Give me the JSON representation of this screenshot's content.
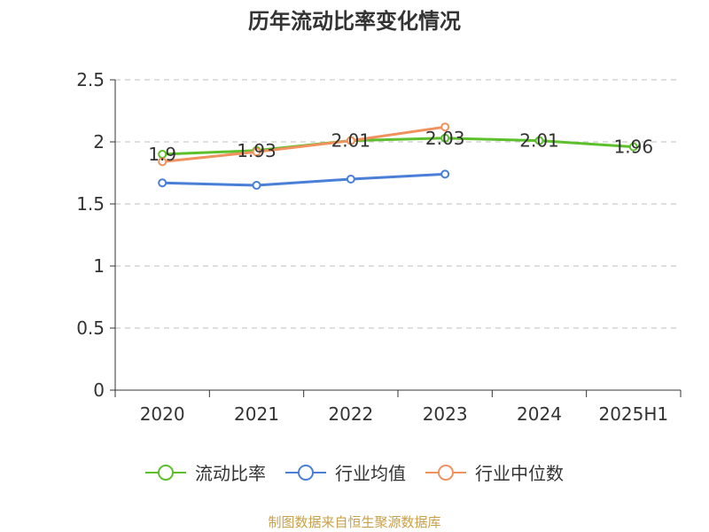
{
  "title": "历年流动比率变化情况",
  "source": "制图数据来自恒生聚源数据库",
  "chart_data": {
    "type": "line",
    "categories": [
      "2020",
      "2021",
      "2022",
      "2023",
      "2024",
      "2025H1"
    ],
    "ylim": [
      0,
      2.5
    ],
    "yticks": [
      "0",
      "0.5",
      "1",
      "1.5",
      "2",
      "2.5"
    ],
    "grid": true,
    "legend_position": "bottom",
    "series": [
      {
        "name": "流动比率",
        "color": "#5dbf2b",
        "values": [
          1.9,
          1.93,
          2.01,
          2.03,
          2.01,
          1.96
        ],
        "labels": [
          "1.9",
          "1.93",
          "2.01",
          "2.03",
          "2.01",
          "1.96"
        ]
      },
      {
        "name": "行业均值",
        "color": "#4a7fd8",
        "values": [
          1.67,
          1.65,
          1.7,
          1.74,
          null,
          null
        ]
      },
      {
        "name": "行业中位数",
        "color": "#f0915e",
        "values": [
          1.84,
          1.92,
          2.01,
          2.12,
          null,
          null
        ]
      }
    ]
  }
}
